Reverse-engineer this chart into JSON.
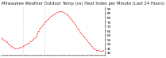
{
  "title": "Milwaukee Weather Outdoor Temp (vs) Heat Index per Minute (Last 24 Hours)",
  "line_color": "#ff0000",
  "bg_color": "#ffffff",
  "plot_bg_color": "#ffffff",
  "yticks": [
    40,
    45,
    50,
    55,
    60,
    65,
    70,
    75,
    80,
    85,
    90
  ],
  "ylim": [
    38,
    93
  ],
  "xlim": [
    0,
    143
  ],
  "vline_positions": [
    30,
    60
  ],
  "vline_color": "#999999",
  "title_fontsize": 3.8,
  "tick_fontsize": 3.0,
  "linewidth": 0.65,
  "y_values": [
    57,
    56,
    55,
    55,
    54,
    54,
    53,
    53,
    52,
    51,
    50,
    49,
    49,
    48,
    47,
    47,
    46,
    46,
    45,
    45,
    45,
    45,
    45,
    45,
    45,
    46,
    46,
    46,
    46,
    47,
    47,
    48,
    48,
    49,
    49,
    50,
    50,
    51,
    51,
    52,
    53,
    53,
    54,
    54,
    55,
    56,
    57,
    57,
    58,
    60,
    62,
    64,
    65,
    67,
    68,
    69,
    70,
    71,
    72,
    73,
    74,
    75,
    76,
    77,
    78,
    78,
    79,
    80,
    81,
    82,
    82,
    83,
    83,
    84,
    84,
    85,
    85,
    86,
    86,
    86,
    87,
    87,
    87,
    87,
    87,
    87,
    86,
    86,
    85,
    85,
    84,
    84,
    83,
    82,
    81,
    80,
    79,
    78,
    77,
    76,
    75,
    74,
    73,
    72,
    70,
    69,
    68,
    67,
    65,
    64,
    63,
    62,
    61,
    60,
    59,
    58,
    57,
    56,
    55,
    54,
    53,
    52,
    51,
    50,
    49,
    48,
    47,
    46,
    45,
    45,
    44,
    44,
    43,
    43,
    43,
    43,
    42,
    42,
    42,
    42,
    42,
    42,
    43,
    43
  ]
}
